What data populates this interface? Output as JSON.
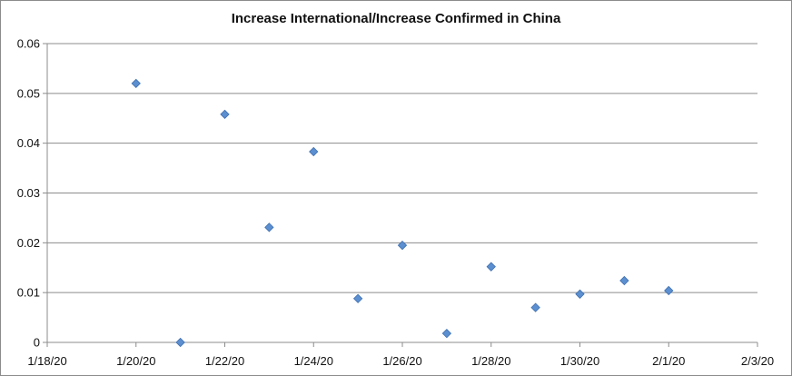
{
  "chart_data": {
    "type": "scatter",
    "title": "Increase International/Increase Confirmed in China",
    "xlabel": "",
    "ylabel": "",
    "x_tick_labels": [
      "1/18/20",
      "1/20/20",
      "1/22/20",
      "1/24/20",
      "1/26/20",
      "1/28/20",
      "1/30/20",
      "2/1/20",
      "2/3/20"
    ],
    "y_tick_labels": [
      "0",
      "0.01",
      "0.02",
      "0.03",
      "0.04",
      "0.05",
      "0.06"
    ],
    "xlim": [
      "2020-01-18",
      "2020-02-03"
    ],
    "ylim": [
      0,
      0.06
    ],
    "grid": "horizontal",
    "legend": "none",
    "marker": "diamond",
    "marker_color": "#5b8fd0",
    "series": [
      {
        "x": [
          "2020-01-20",
          "2020-01-21",
          "2020-01-22",
          "2020-01-23",
          "2020-01-24",
          "2020-01-25",
          "2020-01-26",
          "2020-01-27",
          "2020-01-28",
          "2020-01-29",
          "2020-01-30",
          "2020-01-31",
          "2020-02-01"
        ],
        "values": [
          0.052,
          0.0,
          0.0458,
          0.0231,
          0.0383,
          0.0088,
          0.0195,
          0.0018,
          0.0152,
          0.007,
          0.0097,
          0.0124,
          0.0104
        ]
      }
    ]
  }
}
